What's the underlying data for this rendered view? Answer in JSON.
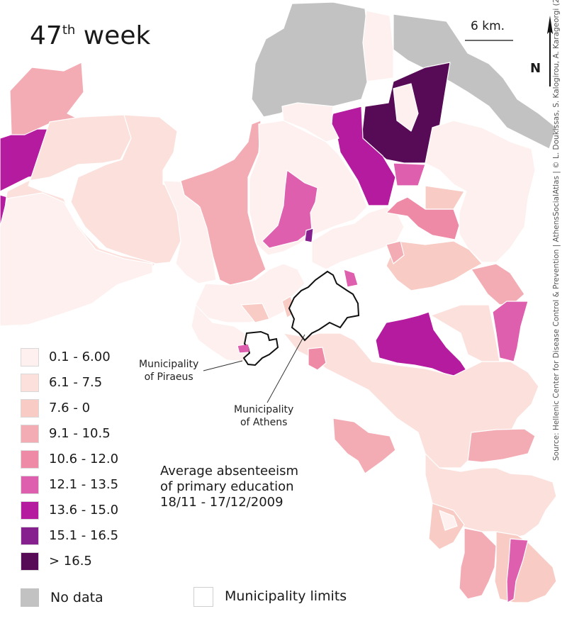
{
  "map": {
    "title_main": "47",
    "title_sup": "th",
    "title_rest": " week",
    "scale_label": "6 km.",
    "north_label": "N",
    "source": "Source: Hellenic Center for Disease Control & Prevention | AthensSocialAtlas | © L. Doukissas, S. Kalogirou, A. Karageorgi (2018)",
    "subtitle_lines": [
      "Average absenteeism",
      "of primary education",
      "18/11 - 17/12/2009"
    ],
    "callouts": {
      "piraeus": [
        "Municipality",
        "of Piraeus"
      ],
      "athens": [
        "Municipality",
        "of Athens"
      ]
    }
  },
  "legend": {
    "classes": [
      {
        "label": "0.1 - 6.00",
        "color": "#fdf0ee"
      },
      {
        "label": "6.1 - 7.5",
        "color": "#fbe0dc"
      },
      {
        "label": "7.6 - 0",
        "color": "#f8cbc4"
      },
      {
        "label": "9.1 - 10.5",
        "color": "#f4acb4"
      },
      {
        "label": "10.6 - 12.0",
        "color": "#ee8aa6"
      },
      {
        "label": "12.1 - 13.5",
        "color": "#de5fae"
      },
      {
        "label": "13.6 - 15.0",
        "color": "#b51b9e"
      },
      {
        "label": "15.1 - 16.5",
        "color": "#85208e"
      },
      {
        "label": "> 16.5",
        "color": "#570a56"
      }
    ],
    "no_data": {
      "label": "No data",
      "color": "#c2c2c2"
    },
    "limits": {
      "label": "Municipality limits"
    }
  }
}
